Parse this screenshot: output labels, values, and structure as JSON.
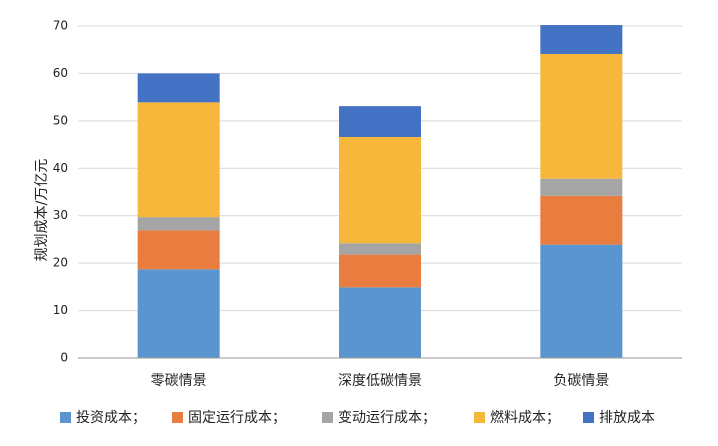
{
  "chart_data": {
    "type": "bar",
    "stacked": true,
    "categories": [
      "零碳情景",
      "深度低碳情景",
      "负碳情景"
    ],
    "series": [
      {
        "name": "投资成本",
        "legend_label": "投资成本；",
        "color": "#5b95cf",
        "values": [
          18.7,
          14.9,
          23.9
        ]
      },
      {
        "name": "固定运行成本",
        "legend_label": "固定运行成本；",
        "color": "#e97c3f",
        "values": [
          8.2,
          6.9,
          10.3
        ]
      },
      {
        "name": "变动运行成本",
        "legend_label": "变动运行成本；",
        "color": "#a5a5a5",
        "values": [
          2.8,
          2.4,
          3.6
        ]
      },
      {
        "name": "燃料成本",
        "legend_label": "燃料成本；",
        "color": "#f7b73b",
        "values": [
          24.2,
          22.4,
          26.3
        ]
      },
      {
        "name": "排放成本",
        "legend_label": "排放成本",
        "color": "#4472c4",
        "values": [
          6.1,
          6.5,
          6.1
        ]
      }
    ],
    "xlabel": "",
    "ylabel": "规划成本/万亿元",
    "ylim": [
      0,
      70
    ],
    "yticks": [
      0,
      10,
      20,
      30,
      40,
      50,
      60,
      70
    ],
    "grid": true,
    "legend_position": "bottom"
  }
}
